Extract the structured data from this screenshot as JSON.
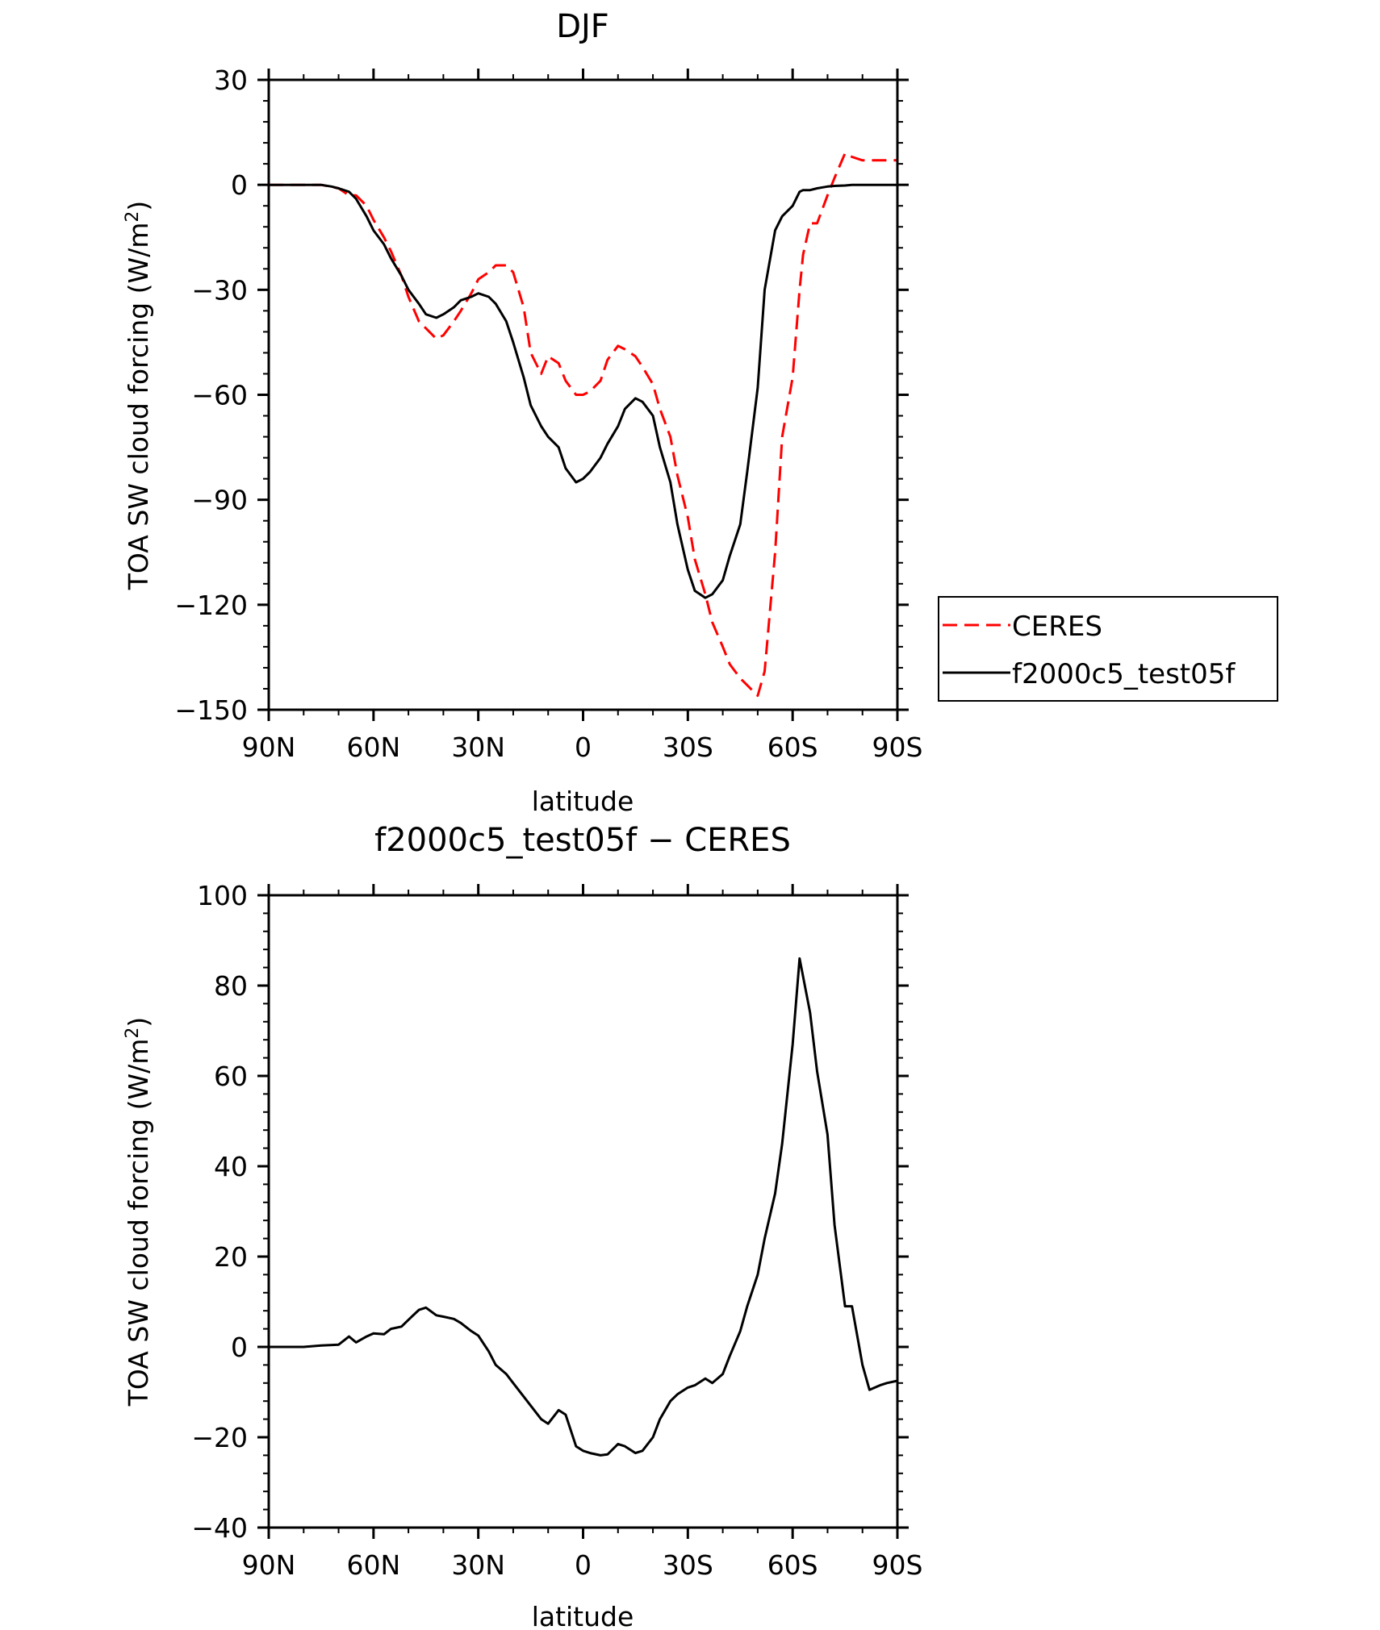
{
  "chart_data": [
    {
      "type": "line",
      "title": "DJF",
      "xlabel": "latitude",
      "ylabel_main": "TOA SW cloud forcing (W/m",
      "ylabel_sup": "2",
      "ylabel_close": ")",
      "xlim": [
        -90,
        90
      ],
      "ylim": [
        -150,
        30
      ],
      "x_ticks": [
        -90,
        -60,
        -30,
        0,
        30,
        60,
        90
      ],
      "x_tick_labels": [
        "90N",
        "60N",
        "30N",
        "0",
        "30S",
        "60S",
        "90S"
      ],
      "y_ticks": [
        30,
        0,
        -30,
        -60,
        -90,
        -120,
        -150
      ],
      "y_tick_labels": [
        "30",
        "0",
        "−30",
        "−60",
        "−90",
        "−120",
        "−150"
      ],
      "legend_position": "right",
      "series": [
        {
          "name": "CERES",
          "color": "#ff0000",
          "dash": "dashed",
          "x": [
            -90,
            -85,
            -80,
            -75,
            -70,
            -67,
            -65,
            -62,
            -60,
            -57,
            -55,
            -52,
            -50,
            -47,
            -45,
            -42,
            -40,
            -37,
            -35,
            -32,
            -30,
            -27,
            -25,
            -22,
            -20,
            -17,
            -15,
            -12,
            -10,
            -7,
            -5,
            -2,
            0,
            2,
            5,
            7,
            10,
            12,
            15,
            17,
            20,
            22,
            25,
            27,
            30,
            32,
            35,
            37,
            40,
            42,
            45,
            47,
            50,
            52,
            55,
            57,
            60,
            62,
            63,
            65,
            67,
            70,
            72,
            75,
            77,
            80,
            82,
            85,
            87,
            90
          ],
          "values": [
            0,
            0,
            0,
            0,
            -1,
            -3,
            -3,
            -6,
            -10,
            -15,
            -19,
            -26,
            -32,
            -39,
            -41,
            -44,
            -43,
            -39,
            -36,
            -31,
            -27,
            -25,
            -23,
            -23,
            -25,
            -35,
            -48,
            -54,
            -49,
            -51,
            -56,
            -60,
            -60,
            -59,
            -56,
            -50,
            -46,
            -47,
            -49,
            -52,
            -57,
            -64,
            -72,
            -83,
            -95,
            -107,
            -117,
            -125,
            -132,
            -137,
            -141,
            -143,
            -146,
            -139,
            -105,
            -72,
            -55,
            -30,
            -20,
            -11,
            -11,
            -3,
            2,
            9,
            8,
            7,
            7,
            7,
            7,
            7
          ]
        },
        {
          "name": "f2000c5_test05f",
          "color": "#000000",
          "dash": "solid",
          "x": [
            -90,
            -85,
            -80,
            -75,
            -72,
            -70,
            -67,
            -65,
            -62,
            -60,
            -57,
            -55,
            -52,
            -50,
            -47,
            -45,
            -42,
            -40,
            -37,
            -35,
            -32,
            -30,
            -27,
            -25,
            -22,
            -20,
            -17,
            -15,
            -12,
            -10,
            -7,
            -5,
            -2,
            0,
            2,
            5,
            7,
            10,
            12,
            15,
            17,
            20,
            22,
            25,
            27,
            30,
            32,
            35,
            37,
            40,
            42,
            45,
            47,
            50,
            52,
            55,
            57,
            60,
            62,
            63,
            65,
            67,
            70,
            72,
            75,
            77,
            80,
            82,
            85,
            87,
            90
          ],
          "values": [
            0,
            0,
            0,
            0,
            -0.5,
            -1,
            -2,
            -4,
            -9,
            -13,
            -17,
            -21,
            -26,
            -30,
            -34,
            -37,
            -38,
            -37,
            -35,
            -33,
            -32,
            -31,
            -32,
            -34,
            -39,
            -45,
            -55,
            -63,
            -69,
            -72,
            -75,
            -81,
            -85,
            -84,
            -82,
            -78,
            -74,
            -69,
            -64,
            -61,
            -62,
            -66,
            -75,
            -85,
            -97,
            -110,
            -116,
            -118,
            -117,
            -113,
            -106,
            -97,
            -82,
            -58,
            -30,
            -13,
            -9,
            -6,
            -2,
            -1.5,
            -1.5,
            -1,
            -0.5,
            -0.3,
            -0.2,
            0,
            0,
            0,
            0,
            0,
            0
          ]
        }
      ]
    },
    {
      "type": "line",
      "title": "f2000c5_test05f − CERES",
      "xlabel": "latitude",
      "ylabel_main": "TOA SW cloud forcing (W/m",
      "ylabel_sup": "2",
      "ylabel_close": ")",
      "xlim": [
        -90,
        90
      ],
      "ylim": [
        -40,
        100
      ],
      "x_ticks": [
        -90,
        -60,
        -30,
        0,
        30,
        60,
        90
      ],
      "x_tick_labels": [
        "90N",
        "60N",
        "30N",
        "0",
        "30S",
        "60S",
        "90S"
      ],
      "y_ticks": [
        100,
        80,
        60,
        40,
        20,
        0,
        -20,
        -40
      ],
      "y_tick_labels": [
        "100",
        "80",
        "60",
        "40",
        "20",
        "0",
        "−20",
        "−40"
      ],
      "series": [
        {
          "color": "#000000",
          "dash": "solid",
          "x": [
            -90,
            -85,
            -80,
            -75,
            -70,
            -67,
            -65,
            -62,
            -60,
            -57,
            -55,
            -52,
            -50,
            -47,
            -45,
            -42,
            -40,
            -37,
            -35,
            -32,
            -30,
            -27,
            -25,
            -22,
            -20,
            -17,
            -15,
            -12,
            -10,
            -7,
            -5,
            -2,
            0,
            2,
            5,
            7,
            10,
            12,
            15,
            17,
            20,
            22,
            25,
            27,
            30,
            32,
            35,
            37,
            40,
            42,
            45,
            47,
            50,
            52,
            55,
            57,
            60,
            62,
            65,
            67,
            70,
            72,
            75,
            77,
            80,
            82,
            85,
            87,
            90
          ],
          "values": [
            0,
            0,
            0,
            0.3,
            0.5,
            2.3,
            1.0,
            2.3,
            3.0,
            2.8,
            4.0,
            4.5,
            6.0,
            8.2,
            8.7,
            7.0,
            6.7,
            6.2,
            5.3,
            3.5,
            2.5,
            -1,
            -4,
            -6,
            -8,
            -11,
            -13,
            -16,
            -17,
            -14,
            -15,
            -22,
            -23,
            -23.5,
            -24,
            -23.8,
            -21.5,
            -22,
            -23.5,
            -23,
            -20,
            -16,
            -12,
            -10.5,
            -9,
            -8.5,
            -7,
            -8,
            -6,
            -2,
            3.5,
            9,
            16,
            24,
            34,
            45,
            67,
            86,
            74,
            61,
            47,
            27,
            9,
            9,
            -4,
            -9.5,
            -8.5,
            -8,
            -7.5
          ]
        }
      ]
    }
  ]
}
